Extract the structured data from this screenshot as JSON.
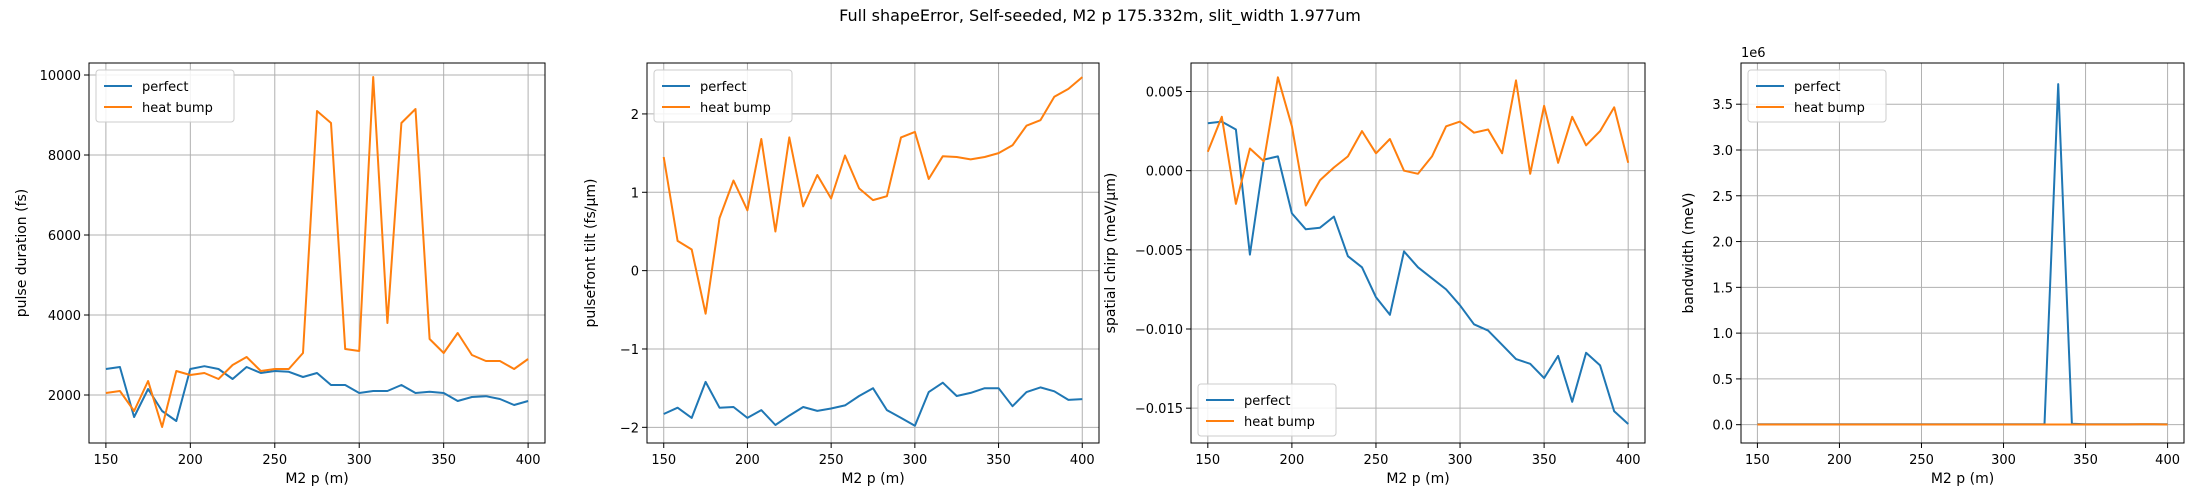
{
  "suptitle": "Full shapeError, Self-seeded, M2 p 175.332m, slit_width 1.977um",
  "colors": {
    "perfect": "#1f77b4",
    "heat_bump": "#ff7f0e",
    "grid": "#b0b0b0"
  },
  "chart_data": [
    {
      "type": "line",
      "xlabel": "M2 p (m)",
      "ylabel": "pulse duration (fs)",
      "xlim": [
        140,
        410
      ],
      "ylim": [
        800,
        10300
      ],
      "xticks": [
        150,
        200,
        250,
        300,
        350,
        400
      ],
      "yticks": [
        2000,
        4000,
        6000,
        8000,
        10000
      ],
      "yticklabels": [
        "2000",
        "4000",
        "6000",
        "8000",
        "10000"
      ],
      "offset_label": "",
      "legend": "upper left",
      "x": [
        150,
        158.3,
        166.7,
        175,
        183.3,
        191.7,
        200,
        208.3,
        216.7,
        225,
        233.3,
        241.7,
        250,
        258.3,
        266.7,
        275,
        283.3,
        291.7,
        300,
        308.3,
        316.7,
        325,
        333.3,
        341.7,
        350,
        358.3,
        366.7,
        375,
        383.3,
        391.7,
        400
      ],
      "series": [
        {
          "name": "perfect",
          "color": "#1f77b4",
          "values": [
            2650,
            2700,
            1450,
            2150,
            1600,
            1350,
            2650,
            2720,
            2650,
            2400,
            2700,
            2550,
            2600,
            2580,
            2450,
            2550,
            2250,
            2250,
            2050,
            2100,
            2100,
            2250,
            2050,
            2080,
            2050,
            1850,
            1950,
            1970,
            1900,
            1750,
            1850
          ]
        },
        {
          "name": "heat bump",
          "color": "#ff7f0e",
          "values": [
            2050,
            2100,
            1600,
            2350,
            1200,
            2600,
            2500,
            2550,
            2400,
            2750,
            2950,
            2600,
            2650,
            2650,
            3050,
            9100,
            8800,
            3150,
            3100,
            9950,
            3800,
            8800,
            9150,
            3400,
            3050,
            3550,
            3000,
            2850,
            2850,
            2650,
            2900
          ]
        }
      ]
    },
    {
      "type": "line",
      "xlabel": "M2 p (m)",
      "ylabel": "pulsefront tilt (fs/μm)",
      "xlim": [
        140,
        410
      ],
      "ylim": [
        -2.2,
        2.65
      ],
      "xticks": [
        150,
        200,
        250,
        300,
        350,
        400
      ],
      "yticks": [
        -2,
        -1,
        0,
        1,
        2
      ],
      "yticklabels": [
        "−2",
        "−1",
        "0",
        "1",
        "2"
      ],
      "offset_label": "",
      "legend": "upper left",
      "x": [
        150,
        158.3,
        166.7,
        175,
        183.3,
        191.7,
        200,
        208.3,
        216.7,
        225,
        233.3,
        241.7,
        250,
        258.3,
        266.7,
        275,
        283.3,
        291.7,
        300,
        308.3,
        316.7,
        325,
        333.3,
        341.7,
        350,
        358.3,
        366.7,
        375,
        383.3,
        391.7,
        400
      ],
      "series": [
        {
          "name": "perfect",
          "color": "#1f77b4",
          "values": [
            -1.83,
            -1.75,
            -1.88,
            -1.42,
            -1.75,
            -1.74,
            -1.88,
            -1.78,
            -1.97,
            -1.85,
            -1.74,
            -1.79,
            -1.76,
            -1.72,
            -1.6,
            -1.5,
            -1.78,
            -1.88,
            -1.98,
            -1.55,
            -1.43,
            -1.6,
            -1.56,
            -1.5,
            -1.5,
            -1.73,
            -1.55,
            -1.49,
            -1.54,
            -1.65,
            -1.64
          ]
        },
        {
          "name": "heat bump",
          "color": "#ff7f0e",
          "values": [
            1.45,
            0.38,
            0.27,
            -0.55,
            0.67,
            1.15,
            0.77,
            1.68,
            0.5,
            1.7,
            0.82,
            1.22,
            0.92,
            1.47,
            1.05,
            0.9,
            0.95,
            1.7,
            1.77,
            1.17,
            1.46,
            1.45,
            1.42,
            1.45,
            1.5,
            1.6,
            1.85,
            1.92,
            2.22,
            2.32,
            2.47
          ]
        }
      ]
    },
    {
      "type": "line",
      "xlabel": "M2 p (m)",
      "ylabel": "spatial chirp (meV/μm)",
      "xlim": [
        140,
        410
      ],
      "ylim": [
        -0.0172,
        0.0068
      ],
      "xticks": [
        150,
        200,
        250,
        300,
        350,
        400
      ],
      "yticks": [
        -0.015,
        -0.01,
        -0.005,
        0.0,
        0.005
      ],
      "yticklabels": [
        "−0.015",
        "−0.010",
        "−0.005",
        "0.000",
        "0.005"
      ],
      "offset_label": "",
      "legend": "lower left",
      "x": [
        150,
        158.3,
        166.7,
        175,
        183.3,
        191.7,
        200,
        208.3,
        216.7,
        225,
        233.3,
        241.7,
        250,
        258.3,
        266.7,
        275,
        283.3,
        291.7,
        300,
        308.3,
        316.7,
        325,
        333.3,
        341.7,
        350,
        358.3,
        366.7,
        375,
        383.3,
        391.7,
        400
      ],
      "series": [
        {
          "name": "perfect",
          "color": "#1f77b4",
          "values": [
            0.003,
            0.0031,
            0.0026,
            -0.0053,
            0.0007,
            0.0009,
            -0.0027,
            -0.0037,
            -0.0036,
            -0.0029,
            -0.0054,
            -0.0061,
            -0.008,
            -0.0091,
            -0.0051,
            -0.0061,
            -0.0068,
            -0.0075,
            -0.0085,
            -0.0097,
            -0.0101,
            -0.011,
            -0.0119,
            -0.0122,
            -0.0131,
            -0.0117,
            -0.0146,
            -0.0115,
            -0.0123,
            -0.0152,
            -0.016
          ]
        },
        {
          "name": "heat bump",
          "color": "#ff7f0e",
          "values": [
            0.0012,
            0.0034,
            -0.0021,
            0.0014,
            0.0006,
            0.0059,
            0.0028,
            -0.0022,
            -0.0006,
            0.0002,
            0.0009,
            0.0025,
            0.0011,
            0.002,
            0.0,
            -0.0002,
            0.0009,
            0.0028,
            0.0031,
            0.0024,
            0.0026,
            0.0011,
            0.0057,
            -0.0002,
            0.0041,
            0.0005,
            0.0034,
            0.0016,
            0.0025,
            0.004,
            0.0005
          ]
        }
      ]
    },
    {
      "type": "line",
      "xlabel": "M2 p (m)",
      "ylabel": "bandwidth (meV)",
      "xlim": [
        140,
        410
      ],
      "ylim": [
        -0.2,
        3.95
      ],
      "xticks": [
        150,
        200,
        250,
        300,
        350,
        400
      ],
      "yticks": [
        0,
        0.5,
        1,
        1.5,
        2,
        2.5,
        3,
        3.5
      ],
      "yticklabels": [
        "0.0",
        "0.5",
        "1.0",
        "1.5",
        "2.0",
        "2.5",
        "3.0",
        "3.5"
      ],
      "offset_label": "1e6",
      "legend": "upper left",
      "x": [
        150,
        158.3,
        166.7,
        175,
        183.3,
        191.7,
        200,
        208.3,
        216.7,
        225,
        233.3,
        241.7,
        250,
        258.3,
        266.7,
        275,
        283.3,
        291.7,
        300,
        308.3,
        316.7,
        325,
        333.3,
        341.7,
        350,
        358.3,
        366.7,
        375,
        383.3,
        391.7,
        400
      ],
      "series": [
        {
          "name": "perfect",
          "color": "#1f77b4",
          "values": [
            0.005,
            0.005,
            0.005,
            0.005,
            0.005,
            0.005,
            0.005,
            0.005,
            0.005,
            0.005,
            0.005,
            0.005,
            0.005,
            0.005,
            0.005,
            0.005,
            0.005,
            0.005,
            0.005,
            0.005,
            0.005,
            0.005,
            3.72,
            0.01,
            0.005,
            0.005,
            0.005,
            0.005,
            0.005,
            0.005,
            0.005
          ]
        },
        {
          "name": "heat bump",
          "color": "#ff7f0e",
          "values": [
            0.002,
            0.002,
            0.002,
            0.002,
            0.002,
            0.002,
            0.002,
            0.002,
            0.002,
            0.002,
            0.002,
            0.002,
            0.002,
            0.002,
            0.002,
            0.002,
            0.002,
            0.002,
            0.002,
            0.002,
            0.002,
            0.002,
            0.002,
            0.002,
            0.002,
            0.002,
            0.002,
            0.002,
            0.004,
            0.004,
            0.002
          ]
        }
      ]
    }
  ]
}
